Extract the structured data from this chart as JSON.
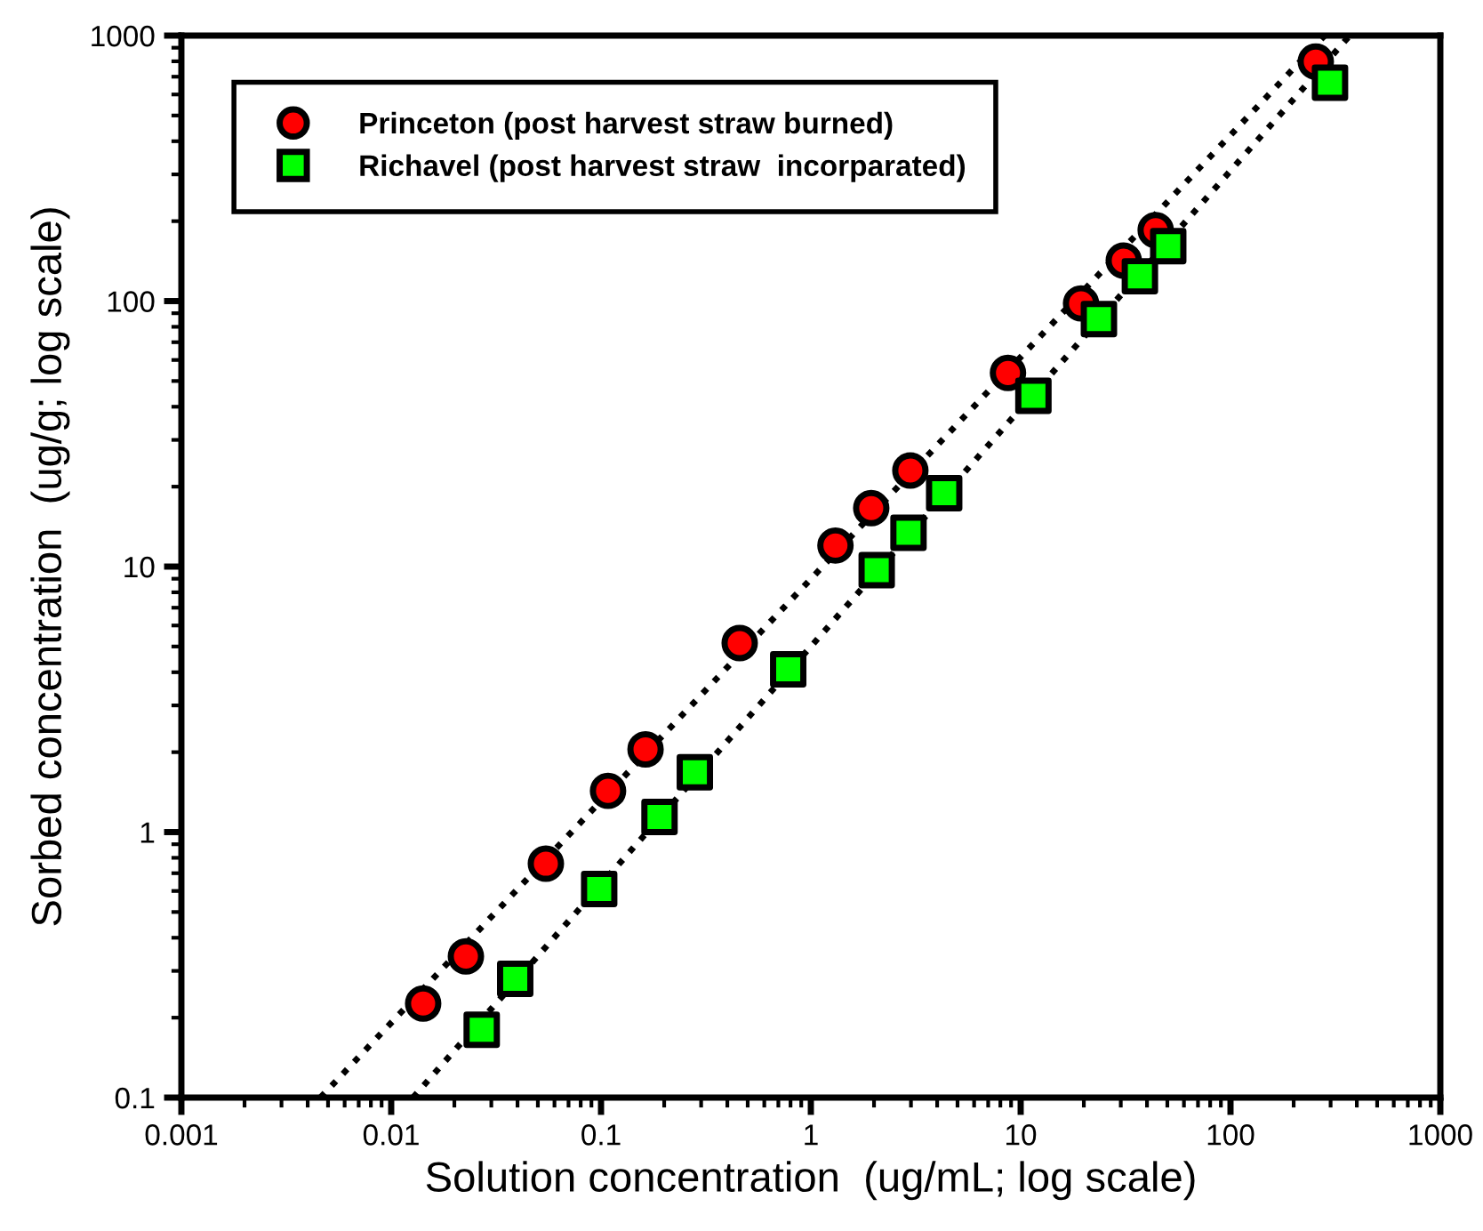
{
  "chart_data": {
    "type": "scatter",
    "xlabel": "Solution concentration  (ug/mL; log scale)",
    "ylabel": "Sorbed concentration  (ug/g; log scale)",
    "log": "xy",
    "xlim": [
      0.001,
      1000
    ],
    "ylim": [
      0.1,
      1000
    ],
    "xticks": [
      0.001,
      0.01,
      0.1,
      1,
      10,
      100,
      1000
    ],
    "yticks": [
      0.1,
      1,
      10,
      100,
      1000
    ],
    "grid": false,
    "legend": "top left",
    "series": [
      {
        "name": "Princeton (post harvest straw burned)",
        "color": "#ff0000",
        "marker": "circle",
        "x": [
          0.0142,
          0.0227,
          0.0546,
          0.108,
          0.163,
          0.458,
          1.31,
          1.94,
          2.98,
          8.7,
          19.4,
          31,
          44,
          255
        ],
        "values": [
          0.226,
          0.34,
          0.76,
          1.43,
          2.05,
          5.15,
          12,
          16.6,
          23,
          53.6,
          98,
          142,
          185,
          798
        ]
      },
      {
        "name": "Richavel (post harvest straw  incorparated)",
        "color": "#00ff00",
        "marker": "square",
        "x": [
          0.027,
          0.039,
          0.098,
          0.19,
          0.28,
          0.78,
          2.06,
          2.92,
          4.32,
          11.5,
          23.6,
          37,
          50.5,
          298
        ],
        "values": [
          0.18,
          0.28,
          0.61,
          1.14,
          1.68,
          4.1,
          9.7,
          13.4,
          18.9,
          44,
          85.5,
          124,
          161,
          664
        ]
      },
      {
        "type": "line",
        "color": "#000000",
        "line_style": "dotted",
        "marker": "none",
        "x": [
          0.0046,
          281
        ],
        "values": [
          0.1,
          1000
        ]
      },
      {
        "type": "line",
        "color": "#000000",
        "line_style": "dotted",
        "marker": "none",
        "x": [
          0.0127,
          370
        ],
        "values": [
          0.1,
          1000
        ]
      }
    ]
  }
}
